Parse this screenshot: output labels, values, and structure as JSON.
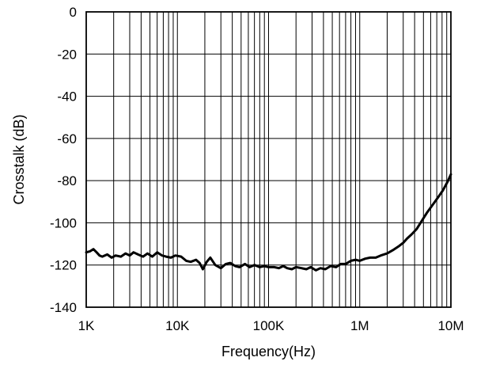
{
  "chart_data": {
    "type": "line",
    "title": "",
    "xlabel": "Frequency(Hz)",
    "ylabel": "Crosstalk (dB)",
    "x_scale": "log",
    "xlim": [
      1000,
      10000000
    ],
    "ylim": [
      -140,
      0
    ],
    "grid": true,
    "x_ticks": [
      {
        "value": 1000,
        "label": "1K"
      },
      {
        "value": 10000,
        "label": "10K"
      },
      {
        "value": 100000,
        "label": "100K"
      },
      {
        "value": 1000000,
        "label": "1M"
      },
      {
        "value": 10000000,
        "label": "10M"
      }
    ],
    "y_ticks": [
      {
        "value": 0,
        "label": "0"
      },
      {
        "value": -20,
        "label": "-20"
      },
      {
        "value": -40,
        "label": "-40"
      },
      {
        "value": -60,
        "label": "-60"
      },
      {
        "value": -80,
        "label": "-80"
      },
      {
        "value": -100,
        "label": "-100"
      },
      {
        "value": -120,
        "label": "-120"
      },
      {
        "value": -140,
        "label": "-140"
      }
    ],
    "series": [
      {
        "color": "#000000",
        "x": [
          1000,
          1100,
          1200,
          1300,
          1400,
          1500,
          1700,
          1900,
          2100,
          2400,
          2700,
          3000,
          3300,
          3700,
          4200,
          4700,
          5300,
          6000,
          6800,
          7500,
          8500,
          9500,
          11000,
          12500,
          14000,
          16000,
          17500,
          19000,
          21000,
          23000,
          26000,
          30000,
          34000,
          38000,
          43000,
          48000,
          55000,
          62000,
          70000,
          80000,
          90000,
          100000,
          115000,
          130000,
          145000,
          160000,
          180000,
          200000,
          230000,
          260000,
          290000,
          330000,
          370000,
          420000,
          480000,
          550000,
          620000,
          700000,
          800000,
          900000,
          1000000,
          1150000,
          1300000,
          1500000,
          1700000,
          2000000,
          2300000,
          2700000,
          3000000,
          3300000,
          3700000,
          4200000,
          4800000,
          5500000,
          6300000,
          7200000,
          8200000,
          9200000,
          10000000
        ],
        "values": [
          -114,
          -113.5,
          -112.5,
          -114,
          -115.5,
          -116,
          -115,
          -116.5,
          -115.5,
          -116,
          -114.5,
          -115.5,
          -114,
          -115,
          -116,
          -114.5,
          -116,
          -114,
          -115.5,
          -116,
          -116.5,
          -115.5,
          -116,
          -118,
          -118.5,
          -117.5,
          -119,
          -122,
          -118.5,
          -116.5,
          -120,
          -121.5,
          -119.5,
          -119,
          -120.5,
          -121,
          -119.5,
          -121,
          -120,
          -121,
          -120.5,
          -121,
          -121,
          -121.5,
          -120.5,
          -121.5,
          -122,
          -121,
          -121.5,
          -122,
          -121,
          -122.5,
          -121.5,
          -122,
          -120.5,
          -121,
          -119.5,
          -119.5,
          -118,
          -117.5,
          -118,
          -117,
          -116.5,
          -116.5,
          -115.5,
          -114.5,
          -113,
          -111,
          -109.5,
          -107.5,
          -105.5,
          -103,
          -99,
          -95,
          -91.5,
          -88,
          -84.5,
          -80.5,
          -77
        ]
      }
    ]
  }
}
